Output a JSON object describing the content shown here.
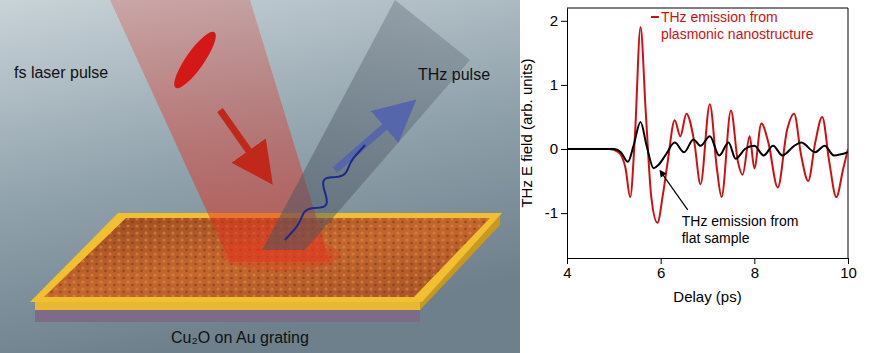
{
  "diagram": {
    "laser_label": "fs laser pulse",
    "thz_label": "THz pulse",
    "sample_label": "Cu₂O on Au grating"
  },
  "chart_data": {
    "type": "line",
    "x_label": "Delay (ps)",
    "y_label": "THz E field (arb. units)",
    "xlim": [
      4,
      10
    ],
    "xticks": [
      4,
      6,
      8,
      10
    ],
    "ylim": [
      -1.7,
      2.2
    ],
    "yticks": [
      -1,
      0,
      1,
      2
    ],
    "grid": false,
    "series": [
      {
        "name": "THz emission from plasmonic nanostructure",
        "color": "#d01010",
        "x": [
          4.0,
          4.5,
          4.9,
          5.1,
          5.25,
          5.35,
          5.45,
          5.57,
          5.68,
          5.8,
          5.93,
          6.05,
          6.15,
          6.3,
          6.42,
          6.55,
          6.72,
          6.85,
          7.05,
          7.2,
          7.3,
          7.5,
          7.65,
          7.75,
          7.9,
          8.0,
          8.15,
          8.3,
          8.5,
          8.7,
          8.85,
          9.0,
          9.15,
          9.3,
          9.45,
          9.6,
          9.75,
          9.9,
          10.0
        ],
        "values": [
          0,
          0,
          0,
          -0.05,
          -0.3,
          -0.75,
          0.2,
          1.9,
          0.6,
          -0.75,
          -1.15,
          -0.7,
          -0.2,
          0.45,
          0.2,
          0.55,
          0.1,
          -0.55,
          0.7,
          -0.3,
          -0.75,
          0.6,
          -0.2,
          -0.4,
          0.2,
          -0.3,
          0.4,
          0.1,
          -0.6,
          0.3,
          0.55,
          -0.1,
          -0.5,
          0.1,
          0.5,
          -0.2,
          -0.75,
          -0.3,
          0.0
        ]
      },
      {
        "name": "THz emission from flat sample",
        "color": "#000000",
        "x": [
          4.0,
          5.0,
          5.15,
          5.3,
          5.42,
          5.57,
          5.7,
          5.85,
          5.95,
          6.1,
          6.3,
          6.5,
          6.7,
          6.85,
          7.05,
          7.25,
          7.45,
          7.6,
          7.8,
          8.0,
          8.2,
          8.4,
          8.6,
          8.85,
          9.0,
          9.3,
          9.5,
          9.7,
          10.0
        ],
        "values": [
          0,
          0,
          -0.05,
          -0.2,
          0.05,
          0.42,
          0.05,
          -0.3,
          -0.25,
          -0.1,
          0.1,
          -0.05,
          0.15,
          0.05,
          0.2,
          -0.1,
          0.1,
          -0.15,
          0.0,
          0.05,
          -0.1,
          0.05,
          -0.1,
          0.05,
          0.1,
          -0.05,
          0.05,
          -0.1,
          -0.05
        ]
      }
    ]
  }
}
